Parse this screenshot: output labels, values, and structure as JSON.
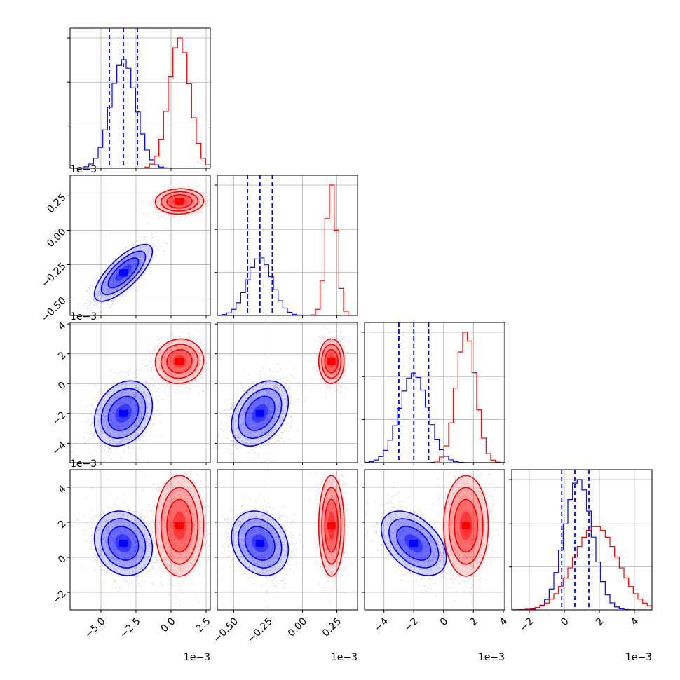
{
  "chart_data": {
    "type": "corner",
    "params": [
      {
        "range": [
          -7.2,
          2.8
        ],
        "ticks": [
          -5.0,
          -2.5,
          0.0,
          2.5
        ],
        "tick_labels": [
          "−5.0",
          "−2.5",
          "0.0",
          "2.5"
        ],
        "offset_label": "1e−3"
      },
      {
        "range": [
          -0.62,
          0.4
        ],
        "ticks": [
          -0.5,
          -0.25,
          0.0,
          0.25
        ],
        "tick_labels": [
          "−0.50",
          "−0.25",
          "0.00",
          "0.25"
        ],
        "offset_label": "1e−3"
      },
      {
        "range": [
          -5.3,
          4.1
        ],
        "ticks": [
          -4,
          -2,
          0,
          2,
          4
        ],
        "tick_labels": [
          "−4",
          "−2",
          "0",
          "2",
          "4"
        ],
        "offset_label": "1e−3"
      },
      {
        "range": [
          -3.0,
          5.0
        ],
        "ticks": [
          -2,
          0,
          2,
          4
        ],
        "tick_labels": [
          "−2",
          "0",
          "2",
          "4"
        ],
        "offset_label": "1e−3"
      }
    ],
    "series": [
      {
        "color": "#0000ff",
        "mean": [
          -3.4,
          -0.31,
          -2.0,
          0.8
        ],
        "sd": [
          0.9,
          0.09,
          0.95,
          0.8
        ],
        "quantiles": [
          [
            -4.4,
            -3.4,
            -2.4
          ],
          [
            -0.4,
            -0.31,
            -0.22
          ],
          [
            -3.0,
            -2.0,
            -1.0
          ],
          [
            -0.15,
            0.6,
            1.4
          ]
        ]
      },
      {
        "color": "#ff0000",
        "mean": [
          0.6,
          0.21,
          1.5,
          1.8
        ],
        "sd": [
          0.75,
          0.04,
          0.65,
          1.25
        ]
      }
    ],
    "correlations": [
      {
        "pair": [
          0,
          1
        ],
        "blue": 0.75,
        "red": 0.05
      },
      {
        "pair": [
          0,
          2
        ],
        "blue": 0.25,
        "red": 0.05
      },
      {
        "pair": [
          1,
          2
        ],
        "blue": 0.35,
        "red": 0.0
      },
      {
        "pair": [
          0,
          3
        ],
        "blue": -0.15,
        "red": 0.0
      },
      {
        "pair": [
          1,
          3
        ],
        "blue": -0.2,
        "red": 0.0
      },
      {
        "pair": [
          2,
          3
        ],
        "blue": -0.45,
        "red": 0.0
      }
    ],
    "grid": true
  }
}
